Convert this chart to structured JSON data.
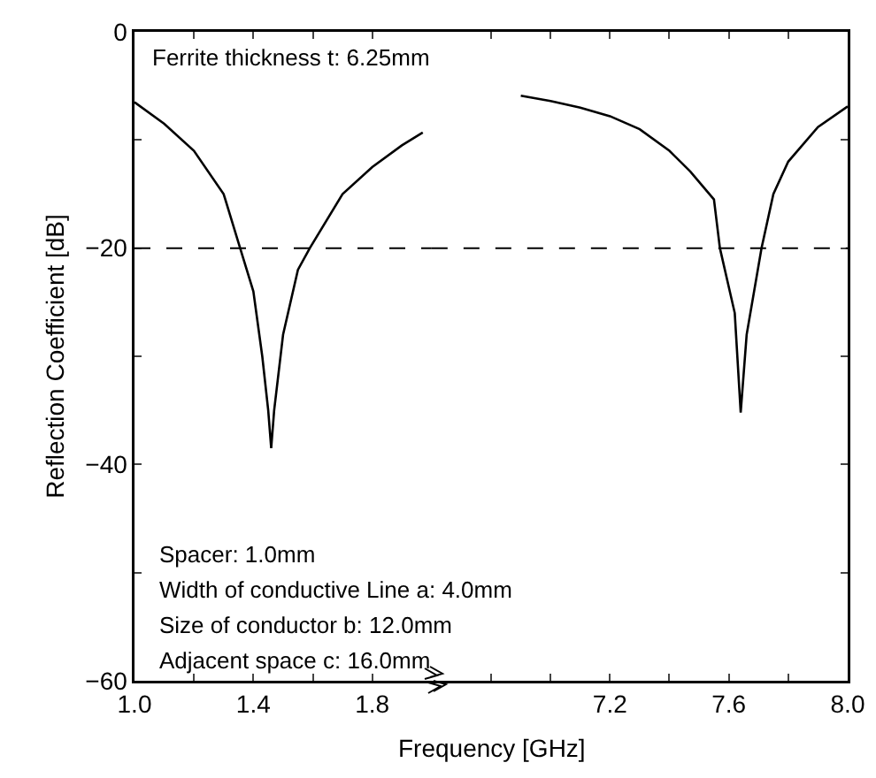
{
  "chart_data": [
    {
      "type": "line",
      "xlabel": "Frequency [GHz]",
      "ylabel": "Reflection Coefficient [dB]",
      "xlim": [
        1.0,
        2.0
      ],
      "xticks": [
        {
          "value": 1.0,
          "label": "1.0"
        },
        {
          "value": 1.2,
          "label": null
        },
        1.4,
        {
          "value": 1.6,
          "label": null
        },
        1.8
      ],
      "ylim": [
        -60,
        0
      ],
      "yticks": [
        {
          "value": -60,
          "label": "−60"
        },
        {
          "value": -50,
          "label": null
        },
        {
          "value": -40,
          "label": "−40"
        },
        {
          "value": -30,
          "label": null
        },
        {
          "value": -20,
          "label": "−20"
        },
        {
          "value": -10,
          "label": null
        },
        0
      ],
      "grid": false,
      "line_style": "solid",
      "marker": "none",
      "series": [
        {
          "color": "#000000",
          "x": [
            1.0,
            1.1,
            1.2,
            1.3,
            1.35,
            1.4,
            1.43,
            1.45,
            1.46,
            1.47,
            1.5,
            1.55,
            1.59,
            1.7,
            1.8,
            1.9,
            1.97
          ],
          "values": [
            -6.5,
            -8.5,
            -11,
            -15,
            -19.5,
            -24,
            -30,
            -35,
            -38.5,
            -35,
            -28,
            -22,
            -20,
            -15,
            -12.5,
            -10.5,
            -9.3
          ]
        }
      ],
      "ref_lines": [
        {
          "axis": "y",
          "value": -20,
          "line_style": "dashed",
          "color": "#000000"
        }
      ],
      "annotations": [
        "Ferrite thickness t: 6.25mm",
        "Spacer: 1.0mm",
        "Width of conductive Line a: 4.0mm",
        "Size of conductor b: 12.0mm",
        "Adjacent space c: 16.0mm"
      ]
    },
    {
      "type": "line",
      "xlim": [
        6.6,
        8.0
      ],
      "xticks": [
        {
          "value": 6.8,
          "label": null
        },
        {
          "value": 7.0,
          "label": null
        },
        7.2,
        {
          "value": 7.4,
          "label": null
        },
        7.6,
        {
          "value": 7.8,
          "label": null
        },
        {
          "value": 8.0,
          "label": "8.0"
        }
      ],
      "ylim": [
        -60,
        0
      ],
      "yticks": [
        -60,
        -50,
        -40,
        -30,
        -20,
        -10,
        0
      ],
      "tick_labels": "x",
      "grid": false,
      "line_style": "solid",
      "marker": "none",
      "series": [
        {
          "color": "#000000",
          "x": [
            6.9,
            7.0,
            7.1,
            7.2,
            7.3,
            7.4,
            7.47,
            7.55,
            7.57,
            7.62,
            7.64,
            7.66,
            7.71,
            7.75,
            7.8,
            7.9,
            8.0
          ],
          "values": [
            -5.9,
            -6.4,
            -7,
            -7.8,
            -9,
            -11,
            -12.9,
            -15.5,
            -20,
            -26,
            -35.2,
            -28,
            -20,
            -15,
            -12,
            -8.8,
            -6.9
          ]
        }
      ],
      "ref_lines": [
        {
          "axis": "y",
          "value": -20,
          "line_style": "dashed",
          "color": "#000000"
        }
      ]
    }
  ]
}
